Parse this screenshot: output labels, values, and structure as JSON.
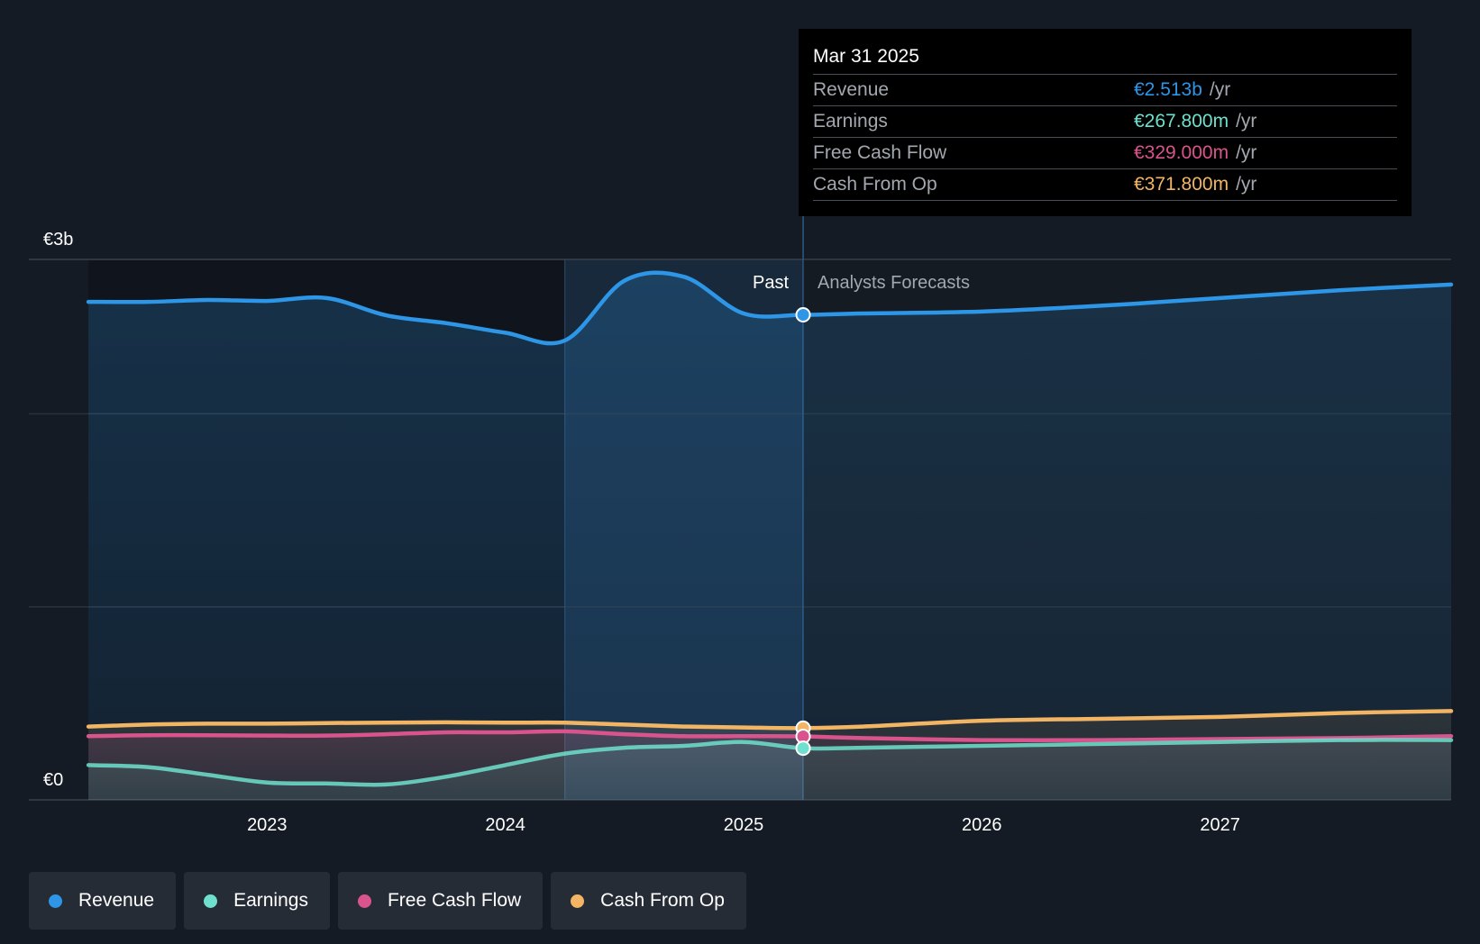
{
  "tooltip": {
    "date": "Mar 31 2025",
    "rows": [
      {
        "name": "Revenue",
        "value": "€2.513b",
        "unit": "/yr",
        "color": "#2d96e6"
      },
      {
        "name": "Earnings",
        "value": "€267.800m",
        "unit": "/yr",
        "color": "#6fe0cd"
      },
      {
        "name": "Free Cash Flow",
        "value": "€329.000m",
        "unit": "/yr",
        "color": "#d9538d"
      },
      {
        "name": "Cash From Op",
        "value": "€371.800m",
        "unit": "/yr",
        "color": "#f2b564"
      }
    ]
  },
  "legend": [
    {
      "label": "Revenue",
      "color": "#2d96e6"
    },
    {
      "label": "Earnings",
      "color": "#6fe0cd"
    },
    {
      "label": "Free Cash Flow",
      "color": "#d9538d"
    },
    {
      "label": "Cash From Op",
      "color": "#f2b564"
    }
  ],
  "chart_data": {
    "type": "line",
    "x_unit": "year",
    "ylim": [
      0,
      2.8
    ],
    "y_unit": "€b",
    "y_tick_labels": [
      {
        "value": 2.8,
        "label": "€3b"
      },
      {
        "value": 0,
        "label": "€0"
      }
    ],
    "x_ticks": [
      {
        "value": 2023.0,
        "label": "2023"
      },
      {
        "value": 2024.0,
        "label": "2024"
      },
      {
        "value": 2025.0,
        "label": "2025"
      },
      {
        "value": 2026.0,
        "label": "2026"
      },
      {
        "value": 2027.0,
        "label": "2027"
      }
    ],
    "xlim": [
      2022.0,
      2027.97
    ],
    "highlight_start": 2024.25,
    "present": 2025.25,
    "past_label": "Past",
    "forecast_label": "Analysts Forecasts",
    "gridlines": [
      2.0,
      1.0
    ],
    "series": [
      {
        "name": "Revenue",
        "color": "#2d96e6",
        "points": [
          [
            2022.25,
            2.58
          ],
          [
            2022.5,
            2.58
          ],
          [
            2022.75,
            2.59
          ],
          [
            2023.0,
            2.585
          ],
          [
            2023.25,
            2.6
          ],
          [
            2023.5,
            2.51
          ],
          [
            2023.75,
            2.47
          ],
          [
            2024.0,
            2.42
          ],
          [
            2024.25,
            2.38
          ],
          [
            2024.5,
            2.69
          ],
          [
            2024.75,
            2.71
          ],
          [
            2025.0,
            2.52
          ],
          [
            2025.25,
            2.513
          ],
          [
            2025.5,
            2.52
          ],
          [
            2026.0,
            2.53
          ],
          [
            2026.5,
            2.56
          ],
          [
            2027.0,
            2.6
          ],
          [
            2027.5,
            2.64
          ],
          [
            2027.97,
            2.67
          ]
        ]
      },
      {
        "name": "Earnings",
        "color": "#6fe0cd",
        "points": [
          [
            2022.25,
            0.18
          ],
          [
            2022.5,
            0.17
          ],
          [
            2022.75,
            0.13
          ],
          [
            2023.0,
            0.09
          ],
          [
            2023.25,
            0.085
          ],
          [
            2023.5,
            0.08
          ],
          [
            2023.75,
            0.12
          ],
          [
            2024.0,
            0.18
          ],
          [
            2024.25,
            0.24
          ],
          [
            2024.5,
            0.27
          ],
          [
            2024.75,
            0.28
          ],
          [
            2025.0,
            0.3
          ],
          [
            2025.25,
            0.2678
          ],
          [
            2025.5,
            0.27
          ],
          [
            2026.0,
            0.28
          ],
          [
            2026.5,
            0.29
          ],
          [
            2027.0,
            0.3
          ],
          [
            2027.5,
            0.31
          ],
          [
            2027.97,
            0.31
          ]
        ]
      },
      {
        "name": "Free Cash Flow",
        "color": "#d9538d",
        "points": [
          [
            2022.25,
            0.33
          ],
          [
            2022.5,
            0.335
          ],
          [
            2022.75,
            0.335
          ],
          [
            2023.0,
            0.333
          ],
          [
            2023.25,
            0.333
          ],
          [
            2023.5,
            0.34
          ],
          [
            2023.75,
            0.35
          ],
          [
            2024.0,
            0.35
          ],
          [
            2024.25,
            0.355
          ],
          [
            2024.5,
            0.34
          ],
          [
            2024.75,
            0.33
          ],
          [
            2025.0,
            0.33
          ],
          [
            2025.25,
            0.329
          ],
          [
            2025.5,
            0.32
          ],
          [
            2026.0,
            0.31
          ],
          [
            2026.5,
            0.31
          ],
          [
            2027.0,
            0.315
          ],
          [
            2027.5,
            0.32
          ],
          [
            2027.97,
            0.33
          ]
        ]
      },
      {
        "name": "Cash From Op",
        "color": "#f2b564",
        "points": [
          [
            2022.25,
            0.38
          ],
          [
            2022.5,
            0.39
          ],
          [
            2022.75,
            0.395
          ],
          [
            2023.0,
            0.395
          ],
          [
            2023.25,
            0.398
          ],
          [
            2023.5,
            0.4
          ],
          [
            2023.75,
            0.402
          ],
          [
            2024.0,
            0.4
          ],
          [
            2024.25,
            0.4
          ],
          [
            2024.5,
            0.39
          ],
          [
            2024.75,
            0.38
          ],
          [
            2025.0,
            0.375
          ],
          [
            2025.25,
            0.3718
          ],
          [
            2025.5,
            0.38
          ],
          [
            2026.0,
            0.41
          ],
          [
            2026.5,
            0.42
          ],
          [
            2027.0,
            0.43
          ],
          [
            2027.5,
            0.45
          ],
          [
            2027.97,
            0.46
          ]
        ]
      }
    ]
  }
}
